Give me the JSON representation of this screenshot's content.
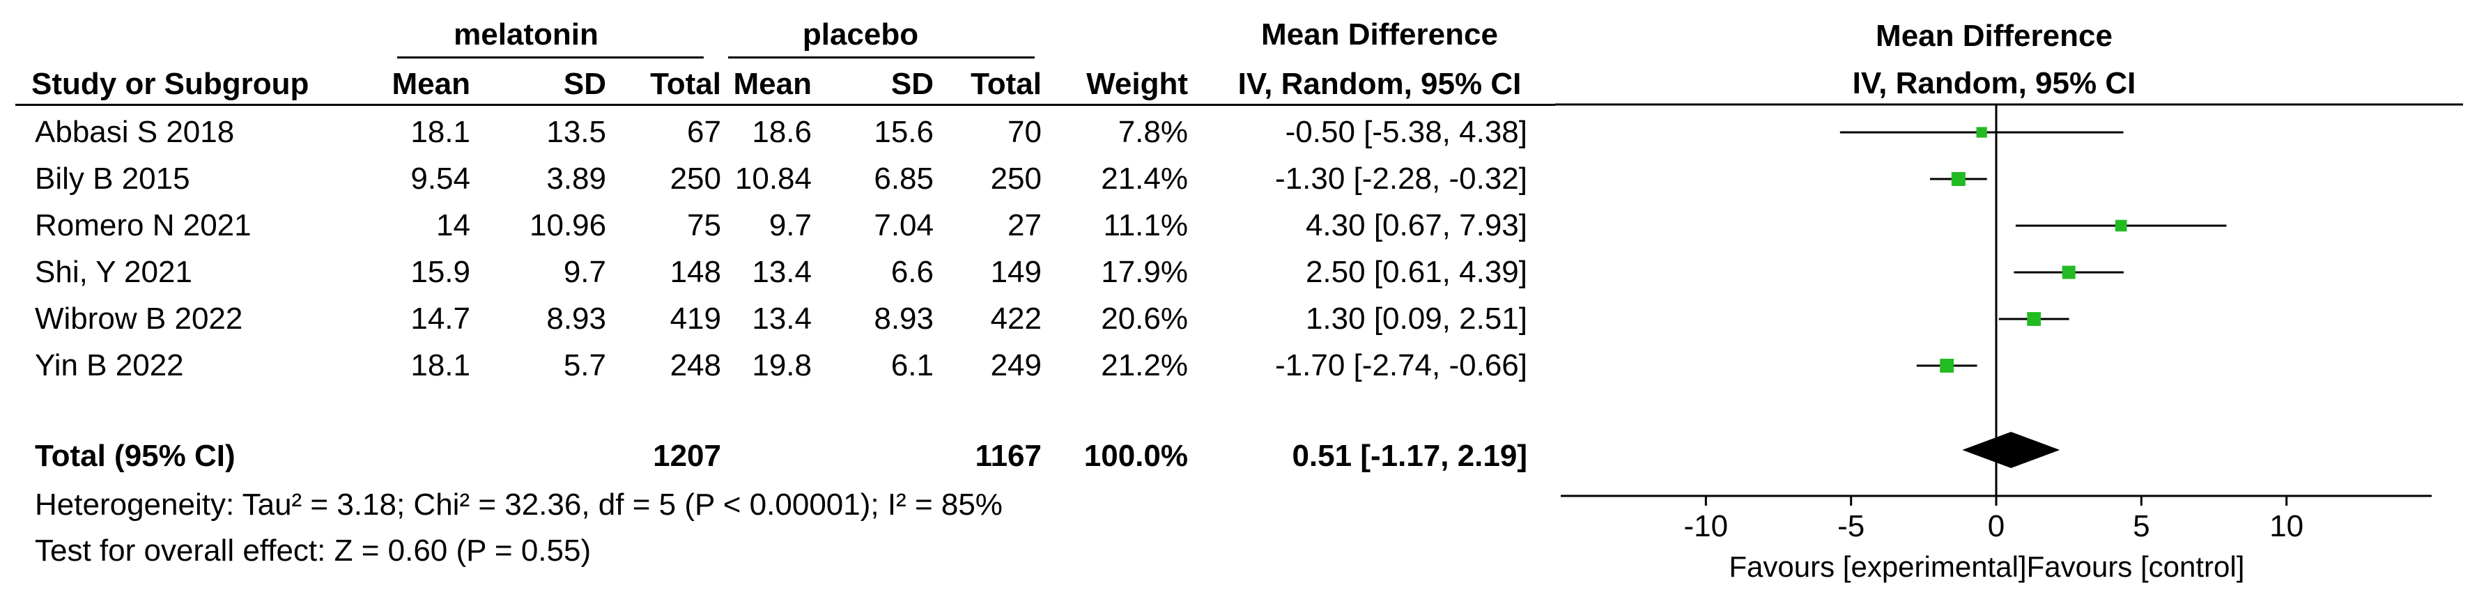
{
  "headers": {
    "group1": "melatonin",
    "group2": "placebo",
    "effect": "Mean Difference",
    "study": "Study or Subgroup",
    "mean1": "Mean",
    "sd1": "SD",
    "total1": "Total",
    "mean2": "Mean",
    "sd2": "SD",
    "total2": "Total",
    "weight": "Weight",
    "method": "IV, Random, 95% CI",
    "plot_title": "Mean Difference",
    "plot_method": "IV, Random, 95% CI"
  },
  "studies": [
    {
      "name": "Abbasi S 2018",
      "mean1": "18.1",
      "sd1": "13.5",
      "total1": "67",
      "mean2": "18.6",
      "sd2": "15.6",
      "total2": "70",
      "weight": "7.8%",
      "ci_text": "-0.50 [-5.38, 4.38]"
    },
    {
      "name": "Bily B 2015",
      "mean1": "9.54",
      "sd1": "3.89",
      "total1": "250",
      "mean2": "10.84",
      "sd2": "6.85",
      "total2": "250",
      "weight": "21.4%",
      "ci_text": "-1.30 [-2.28, -0.32]"
    },
    {
      "name": "Romero N 2021",
      "mean1": "14",
      "sd1": "10.96",
      "total1": "75",
      "mean2": "9.7",
      "sd2": "7.04",
      "total2": "27",
      "weight": "11.1%",
      "ci_text": "4.30 [0.67, 7.93]"
    },
    {
      "name": "Shi, Y 2021",
      "mean1": "15.9",
      "sd1": "9.7",
      "total1": "148",
      "mean2": "13.4",
      "sd2": "6.6",
      "total2": "149",
      "weight": "17.9%",
      "ci_text": "2.50 [0.61, 4.39]"
    },
    {
      "name": "Wibrow B 2022",
      "mean1": "14.7",
      "sd1": "8.93",
      "total1": "419",
      "mean2": "13.4",
      "sd2": "8.93",
      "total2": "422",
      "weight": "20.6%",
      "ci_text": "1.30 [0.09, 2.51]"
    },
    {
      "name": "Yin B 2022",
      "mean1": "18.1",
      "sd1": "5.7",
      "total1": "248",
      "mean2": "19.8",
      "sd2": "6.1",
      "total2": "249",
      "weight": "21.2%",
      "ci_text": "-1.70 [-2.74, -0.66]"
    }
  ],
  "total": {
    "label": "Total (95% CI)",
    "total1": "1207",
    "total2": "1167",
    "weight": "100.0%",
    "ci_text": "0.51 [-1.17, 2.19]"
  },
  "heterogeneity": "Heterogeneity: Tau² = 3.18; Chi² = 32.36, df = 5 (P < 0.00001); I² = 85%",
  "overall_effect": "Test for overall effect: Z = 0.60 (P = 0.55)",
  "axis": {
    "favours_left": "Favours [experimental]",
    "favours_right": "Favours [control]"
  },
  "colors": {
    "marker": "#22bb22",
    "diamond": "#000000",
    "line": "#000000"
  },
  "chart_data": {
    "type": "forest",
    "x": {
      "min": -15,
      "max": 15,
      "ticks": [
        -10,
        -5,
        0,
        5,
        10
      ],
      "tick_labels": [
        "-10",
        "-5",
        "0",
        "5",
        "10"
      ]
    },
    "studies": [
      {
        "name": "Abbasi S 2018",
        "md": -0.5,
        "lo": -5.38,
        "hi": 4.38,
        "weight": 7.8
      },
      {
        "name": "Bily B 2015",
        "md": -1.3,
        "lo": -2.28,
        "hi": -0.32,
        "weight": 21.4
      },
      {
        "name": "Romero N 2021",
        "md": 4.3,
        "lo": 0.67,
        "hi": 7.93,
        "weight": 11.1
      },
      {
        "name": "Shi, Y 2021",
        "md": 2.5,
        "lo": 0.61,
        "hi": 4.39,
        "weight": 17.9
      },
      {
        "name": "Wibrow B 2022",
        "md": 1.3,
        "lo": 0.09,
        "hi": 2.51,
        "weight": 20.6
      },
      {
        "name": "Yin B 2022",
        "md": -1.7,
        "lo": -2.74,
        "hi": -0.66,
        "weight": 21.2
      }
    ],
    "pooled": {
      "md": 0.51,
      "lo": -1.17,
      "hi": 2.19
    }
  }
}
